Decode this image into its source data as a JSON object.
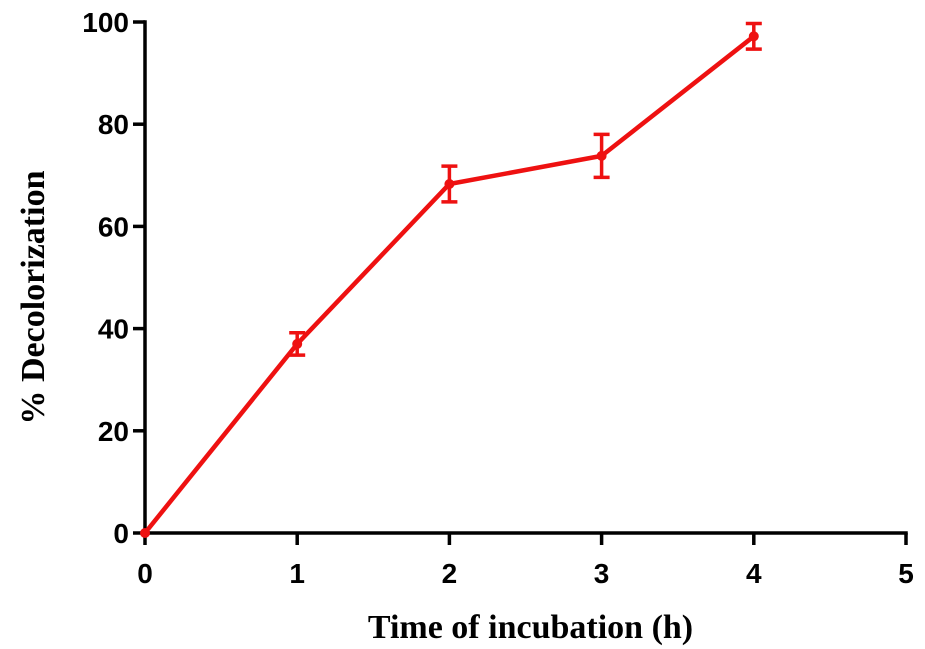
{
  "chart_data": {
    "type": "line",
    "title": "",
    "xlabel": "Time of incubation (h)",
    "ylabel": "% Decolorization",
    "xlim": [
      0,
      5
    ],
    "ylim": [
      0,
      100
    ],
    "x_ticks": [
      "0",
      "1",
      "2",
      "3",
      "4",
      "5"
    ],
    "y_ticks": [
      "0",
      "20",
      "40",
      "60",
      "80",
      "100"
    ],
    "grid": false,
    "legend": "none",
    "series": [
      {
        "color": "#ee1111",
        "x": [
          0,
          1,
          2,
          3,
          4
        ],
        "values": [
          0,
          37,
          68.3,
          73.8,
          97.2
        ],
        "error": [
          0,
          2.2,
          3.5,
          4.2,
          2.5
        ]
      }
    ]
  }
}
